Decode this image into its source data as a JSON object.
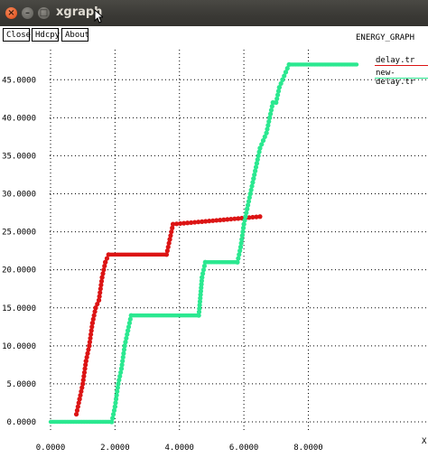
{
  "window": {
    "title": "xgraph",
    "close_symbol": "×",
    "min_symbol": "–",
    "max_symbol": "□"
  },
  "toolbar": {
    "close_label": "Close",
    "hdcpy_label": "Hdcpy",
    "about_label": "About"
  },
  "graph": {
    "title": "ENERGY_GRAPH",
    "x_axis_label_partial": "X"
  },
  "colors": {
    "series1": "#dc1414",
    "series2": "#2be890",
    "grid": "#000000"
  },
  "chart_data": {
    "type": "line",
    "title": "ENERGY_GRAPH",
    "xlim": [
      0,
      9.5
    ],
    "ylim": [
      0,
      48
    ],
    "x_ticks": [
      0,
      2,
      4,
      6,
      8
    ],
    "x_tick_labels": [
      "0.0000",
      "2.0000",
      "4.0000",
      "6.0000",
      "8.0000"
    ],
    "y_ticks": [
      0,
      5,
      10,
      15,
      20,
      25,
      30,
      35,
      40,
      45
    ],
    "y_tick_labels": [
      "0.0000",
      "5.0000",
      "10.0000",
      "15.0000",
      "20.0000",
      "25.0000",
      "30.0000",
      "35.0000",
      "40.0000",
      "45.0000"
    ],
    "legend_position": "top-right",
    "grid": true,
    "series": [
      {
        "name": "delay.tr",
        "color": "#dc1414",
        "x": [
          0.8,
          0.9,
          1.0,
          1.1,
          1.2,
          1.3,
          1.4,
          1.5,
          1.6,
          1.7,
          1.8,
          3.6,
          3.7,
          3.8,
          6.5
        ],
        "y": [
          1,
          3,
          5,
          8,
          10,
          13,
          15,
          16,
          19,
          21,
          22,
          22,
          24,
          26,
          27
        ]
      },
      {
        "name": "new-delay.tr",
        "color": "#2be890",
        "x": [
          0.0,
          1.9,
          2.0,
          2.1,
          2.2,
          2.3,
          2.4,
          2.5,
          4.6,
          4.7,
          4.8,
          5.8,
          5.9,
          6.0,
          6.1,
          6.2,
          6.3,
          6.4,
          6.5,
          6.6,
          6.7,
          6.8,
          6.9,
          7.0,
          7.1,
          7.2,
          7.3,
          7.4,
          9.5
        ],
        "y": [
          0,
          0,
          2,
          5,
          7,
          10,
          12,
          14,
          14,
          19,
          21,
          21,
          23,
          26,
          28,
          30,
          32,
          34,
          36,
          37,
          38,
          40,
          42,
          42,
          44,
          45,
          46,
          47,
          47
        ]
      }
    ]
  }
}
